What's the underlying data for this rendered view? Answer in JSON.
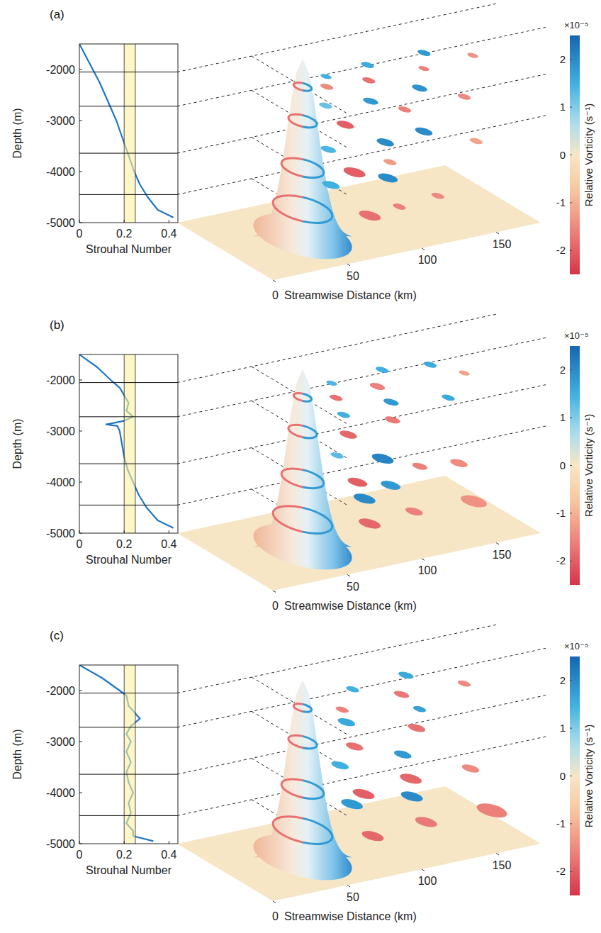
{
  "chart_data": [
    {
      "type": "line",
      "label": "(a)",
      "x_label": "Strouhal Number",
      "y_label": "Depth (m)",
      "xlim": [
        0,
        0.44
      ],
      "xticks": [
        0,
        0.2,
        0.4
      ],
      "ylim": [
        -5000,
        -1500
      ],
      "yticks": [
        -2000,
        -3000,
        -4000,
        -5000
      ],
      "x": [
        0,
        0.03,
        0.06,
        0.09,
        0.115,
        0.14,
        0.165,
        0.185,
        0.205,
        0.225,
        0.245,
        0.27,
        0.305,
        0.35,
        0.42
      ],
      "series": [
        {
          "color": "#1f77c4",
          "values": [
            -1500,
            -1750,
            -2000,
            -2250,
            -2500,
            -2750,
            -3000,
            -3250,
            -3500,
            -3750,
            -4000,
            -4250,
            -4500,
            -4750,
            -4900
          ]
        }
      ],
      "band": [
        0.2,
        0.25
      ],
      "seamount": {
        "s": 50,
        "c": 32,
        "radius": 10
      },
      "streamwise_label": "Streamwise Distance (km)",
      "streamwise_lim": [
        0,
        180
      ],
      "streamwise_ticks": [
        0,
        50,
        100,
        150
      ],
      "crossstream_lim": [
        0,
        60
      ],
      "colorbar": {
        "label": "Relative Vorticity (s⁻¹)",
        "multiplier": "×10⁻⁵",
        "range": [
          -2.5,
          2.5
        ],
        "ticks": [
          -2,
          -1,
          0,
          1,
          2
        ]
      },
      "slices": [
        {
          "depth": -2050,
          "eddies": [
            {
              "s": 62,
              "c": 36,
              "r": 3,
              "vorticity": -1.5
            },
            {
              "s": 70,
              "c": 28,
              "r": 2.5,
              "vorticity": 1.5
            },
            {
              "s": 88,
              "c": 38,
              "r": 3,
              "vorticity": -1.8
            },
            {
              "s": 100,
              "c": 26,
              "r": 3,
              "vorticity": 1.6
            },
            {
              "s": 125,
              "c": 38,
              "r": 2.5,
              "vorticity": -1.6
            },
            {
              "s": 138,
              "c": 26,
              "r": 3,
              "vorticity": 1.8
            },
            {
              "s": 160,
              "c": 36,
              "r": 2.5,
              "vorticity": -1.4
            }
          ]
        },
        {
          "depth": -2720,
          "eddies": [
            {
              "s": 68,
              "c": 42,
              "r": 4,
              "vorticity": -2
            },
            {
              "s": 74,
              "c": 24,
              "r": 3,
              "vorticity": 1.2
            },
            {
              "s": 100,
              "c": 28,
              "r": 3.5,
              "vorticity": 1.8
            },
            {
              "s": 110,
              "c": 40,
              "r": 3,
              "vorticity": -1.6
            },
            {
              "s": 135,
              "c": 26,
              "r": 3.5,
              "vorticity": 1.9
            },
            {
              "s": 150,
              "c": 40,
              "r": 3,
              "vorticity": -1.5
            }
          ]
        },
        {
          "depth": -3640,
          "eddies": [
            {
              "s": 72,
              "c": 44,
              "r": 5,
              "vorticity": -2
            },
            {
              "s": 78,
              "c": 22,
              "r": 3.5,
              "vorticity": 1.4
            },
            {
              "s": 98,
              "c": 42,
              "r": 3,
              "vorticity": -1.3
            },
            {
              "s": 112,
              "c": 26,
              "r": 4,
              "vorticity": 2
            },
            {
              "s": 140,
              "c": 24,
              "r": 4,
              "vorticity": 2
            },
            {
              "s": 158,
              "c": 40,
              "r": 3,
              "vorticity": -1.2
            }
          ]
        },
        {
          "depth": -4450,
          "eddies": [
            {
              "s": 78,
              "c": 48,
              "r": 5,
              "vorticity": -1.8
            },
            {
              "s": 84,
              "c": 18,
              "r": 4,
              "vorticity": 1.5
            },
            {
              "s": 100,
              "c": 46,
              "r": 3,
              "vorticity": -1.6
            },
            {
              "s": 118,
              "c": 22,
              "r": 4.5,
              "vorticity": 2
            },
            {
              "s": 128,
              "c": 44,
              "r": 3,
              "vorticity": -1.5
            }
          ]
        }
      ]
    },
    {
      "type": "line",
      "label": "(b)",
      "x_label": "Strouhal Number",
      "y_label": "Depth (m)",
      "xlim": [
        0,
        0.44
      ],
      "xticks": [
        0,
        0.2,
        0.4
      ],
      "ylim": [
        -5000,
        -1500
      ],
      "yticks": [
        -2000,
        -3000,
        -4000,
        -5000
      ],
      "x": [
        0,
        0.08,
        0.14,
        0.18,
        0.2,
        0.22,
        0.21,
        0.24,
        0.2,
        0.12,
        0.17,
        0.18,
        0.19,
        0.2,
        0.215,
        0.24,
        0.265,
        0.3,
        0.35,
        0.42
      ],
      "series": [
        {
          "color": "#1f77c4",
          "values": [
            -1500,
            -1750,
            -2000,
            -2150,
            -2300,
            -2450,
            -2600,
            -2720,
            -2800,
            -2870,
            -2900,
            -3000,
            -3250,
            -3500,
            -3750,
            -4000,
            -4250,
            -4500,
            -4750,
            -4900
          ]
        }
      ],
      "band": [
        0.2,
        0.25
      ],
      "seamount": {
        "s": 50,
        "c": 32,
        "radius": 10
      },
      "streamwise_label": "Streamwise Distance (km)",
      "streamwise_lim": [
        0,
        180
      ],
      "streamwise_ticks": [
        0,
        50,
        100,
        150
      ],
      "crossstream_lim": [
        0,
        60
      ],
      "colorbar": {
        "label": "Relative Vorticity (s⁻¹)",
        "multiplier": "×10⁻⁵",
        "range": [
          -2.5,
          2.5
        ],
        "ticks": [
          -2,
          -1,
          0,
          1,
          2
        ]
      },
      "slices": [
        {
          "depth": -2050,
          "eddies": [
            {
              "s": 66,
              "c": 38,
              "r": 3,
              "vorticity": -1.8
            },
            {
              "s": 76,
              "c": 26,
              "r": 2.5,
              "vorticity": 1.4
            },
            {
              "s": 96,
              "c": 36,
              "r": 3.5,
              "vorticity": -1.6
            },
            {
              "s": 112,
              "c": 24,
              "r": 3,
              "vorticity": 1.5
            },
            {
              "s": 140,
              "c": 28,
              "r": 3,
              "vorticity": 1.6
            },
            {
              "s": 150,
              "c": 40,
              "r": 2.5,
              "vorticity": -1.2
            }
          ]
        },
        {
          "depth": -2720,
          "eddies": [
            {
              "s": 70,
              "c": 42,
              "r": 4,
              "vorticity": -1.9
            },
            {
              "s": 84,
              "c": 26,
              "r": 3,
              "vorticity": 1.5
            },
            {
              "s": 104,
              "c": 38,
              "r": 3.5,
              "vorticity": -1.7
            },
            {
              "s": 118,
              "c": 24,
              "r": 3.5,
              "vorticity": 1.8
            },
            {
              "s": 150,
              "c": 30,
              "r": 3,
              "vorticity": 1.6
            }
          ]
        },
        {
          "depth": -3640,
          "eddies": [
            {
              "s": 74,
              "c": 44,
              "r": 4.5,
              "vorticity": -2
            },
            {
              "s": 86,
              "c": 20,
              "r": 3,
              "vorticity": 1.3
            },
            {
              "s": 106,
              "c": 30,
              "r": 5,
              "vorticity": 2.1
            },
            {
              "s": 118,
              "c": 42,
              "r": 3.5,
              "vorticity": -1.6
            },
            {
              "s": 140,
              "c": 46,
              "r": 4,
              "vorticity": -1.5
            }
          ]
        },
        {
          "depth": -4450,
          "eddies": [
            {
              "s": 80,
              "c": 46,
              "r": 5,
              "vorticity": -1.9
            },
            {
              "s": 98,
              "c": 26,
              "r": 5,
              "vorticity": 2
            },
            {
              "s": 112,
              "c": 44,
              "r": 4,
              "vorticity": -1.6
            },
            {
              "s": 122,
              "c": 20,
              "r": 4.5,
              "vorticity": 1.8
            },
            {
              "s": 150,
              "c": 46,
              "r": 6,
              "vorticity": -1.4
            }
          ]
        }
      ]
    },
    {
      "type": "line",
      "label": "(c)",
      "x_label": "Strouhal Number",
      "y_label": "Depth (m)",
      "xlim": [
        0,
        0.44
      ],
      "xticks": [
        0,
        0.2,
        0.4
      ],
      "ylim": [
        -5000,
        -1500
      ],
      "yticks": [
        -2000,
        -3000,
        -4000,
        -5000
      ],
      "x": [
        0,
        0.1,
        0.18,
        0.21,
        0.22,
        0.24,
        0.27,
        0.23,
        0.21,
        0.23,
        0.21,
        0.23,
        0.21,
        0.22,
        0.24,
        0.22,
        0.23,
        0.21,
        0.24,
        0.24,
        0.33
      ],
      "series": [
        {
          "color": "#1f77c4",
          "values": [
            -1500,
            -1750,
            -2000,
            -2100,
            -2300,
            -2400,
            -2550,
            -2700,
            -2850,
            -3000,
            -3200,
            -3400,
            -3600,
            -3800,
            -4000,
            -4200,
            -4400,
            -4600,
            -4750,
            -4850,
            -4950
          ]
        }
      ],
      "band": [
        0.2,
        0.25
      ],
      "seamount": {
        "s": 50,
        "c": 32,
        "radius": 10
      },
      "streamwise_label": "Streamwise Distance (km)",
      "streamwise_lim": [
        0,
        180
      ],
      "streamwise_ticks": [
        0,
        50,
        100,
        150
      ],
      "crossstream_lim": [
        0,
        60
      ],
      "colorbar": {
        "label": "Relative Vorticity (s⁻¹)",
        "multiplier": "×10⁻⁵",
        "range": [
          -2.5,
          2.5
        ],
        "ticks": [
          -2,
          -1,
          0,
          1,
          2
        ]
      },
      "slices": [
        {
          "depth": -2050,
          "eddies": [
            {
              "s": 68,
              "c": 40,
              "r": 3,
              "vorticity": -1.6
            },
            {
              "s": 90,
              "c": 26,
              "r": 3,
              "vorticity": 1.5
            },
            {
              "s": 110,
              "c": 38,
              "r": 3.5,
              "vorticity": -1.7
            },
            {
              "s": 128,
              "c": 24,
              "r": 3.5,
              "vorticity": 1.6
            },
            {
              "s": 150,
              "c": 40,
              "r": 3,
              "vorticity": -1.5
            }
          ]
        },
        {
          "depth": -2720,
          "eddies": [
            {
              "s": 72,
              "c": 44,
              "r": 4,
              "vorticity": -1.8
            },
            {
              "s": 88,
              "c": 24,
              "r": 4,
              "vorticity": 1.6
            },
            {
              "s": 118,
              "c": 40,
              "r": 4,
              "vorticity": -1.8
            },
            {
              "s": 135,
              "c": 26,
              "r": 3,
              "vorticity": 1.7
            }
          ]
        },
        {
          "depth": -3640,
          "eddies": [
            {
              "s": 76,
              "c": 46,
              "r": 5,
              "vorticity": -2
            },
            {
              "s": 88,
              "c": 20,
              "r": 4,
              "vorticity": 1.5
            },
            {
              "s": 112,
              "c": 42,
              "r": 5,
              "vorticity": -1.9
            },
            {
              "s": 128,
              "c": 22,
              "r": 4,
              "vorticity": 1.8
            },
            {
              "s": 150,
              "c": 44,
              "r": 4,
              "vorticity": -1.5
            }
          ]
        },
        {
          "depth": -4450,
          "eddies": [
            {
              "s": 80,
              "c": 48,
              "r": 5,
              "vorticity": -1.9
            },
            {
              "s": 96,
              "c": 20,
              "r": 5,
              "vorticity": 1.8
            },
            {
              "s": 118,
              "c": 46,
              "r": 5,
              "vorticity": -1.7
            },
            {
              "s": 132,
              "c": 24,
              "r": 5,
              "vorticity": 2
            },
            {
              "s": 160,
              "c": 48,
              "r": 7,
              "vorticity": -1.6
            }
          ]
        }
      ]
    }
  ]
}
